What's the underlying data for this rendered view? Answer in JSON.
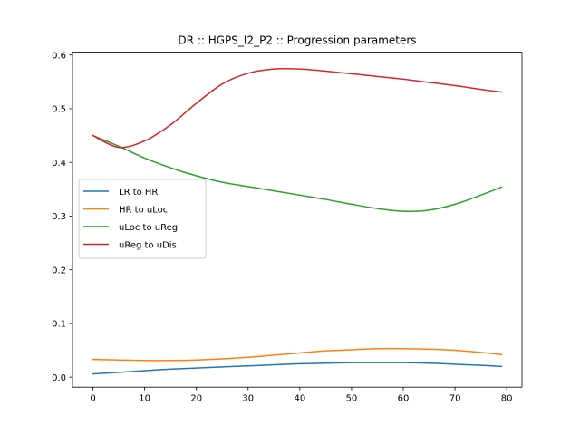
{
  "chart_data": {
    "type": "line",
    "title": "DR :: HGPS_I2_P2 ::  Progression parameters",
    "xlabel": "",
    "ylabel": "",
    "xlim": [
      -3.95,
      82.95
    ],
    "ylim": [
      -0.0186,
      0.6052
    ],
    "xticks": [
      0,
      10,
      20,
      30,
      40,
      50,
      60,
      70,
      80
    ],
    "xtick_labels": [
      "0",
      "10",
      "20",
      "30",
      "40",
      "50",
      "60",
      "70",
      "80"
    ],
    "yticks": [
      0.0,
      0.1,
      0.2,
      0.3,
      0.4,
      0.5,
      0.6
    ],
    "ytick_labels": [
      "0.0",
      "0.1",
      "0.2",
      "0.3",
      "0.4",
      "0.5",
      "0.6"
    ],
    "grid": false,
    "legend": "center-left",
    "x": [
      0,
      5,
      10,
      15,
      20,
      25,
      30,
      35,
      40,
      45,
      50,
      55,
      60,
      65,
      70,
      75,
      79
    ],
    "series": [
      {
        "name": "LR to HR",
        "color": "#1f77b4",
        "values": [
          0.006,
          0.009,
          0.012,
          0.015,
          0.017,
          0.019,
          0.021,
          0.023,
          0.025,
          0.026,
          0.027,
          0.027,
          0.027,
          0.026,
          0.024,
          0.022,
          0.02
        ]
      },
      {
        "name": "HR to uLoc",
        "color": "#ff7f0e",
        "values": [
          0.033,
          0.032,
          0.031,
          0.031,
          0.032,
          0.034,
          0.037,
          0.041,
          0.045,
          0.049,
          0.051,
          0.053,
          0.053,
          0.052,
          0.05,
          0.046,
          0.042
        ]
      },
      {
        "name": "uLoc to uReg",
        "color": "#2ca02c",
        "values": [
          0.45,
          0.43,
          0.408,
          0.39,
          0.375,
          0.363,
          0.355,
          0.347,
          0.339,
          0.331,
          0.322,
          0.314,
          0.309,
          0.311,
          0.322,
          0.339,
          0.354
        ]
      },
      {
        "name": "uReg to uDis",
        "color": "#d62728",
        "values": [
          0.45,
          0.428,
          0.44,
          0.47,
          0.51,
          0.546,
          0.566,
          0.574,
          0.574,
          0.57,
          0.565,
          0.56,
          0.555,
          0.549,
          0.543,
          0.536,
          0.531
        ]
      }
    ]
  }
}
